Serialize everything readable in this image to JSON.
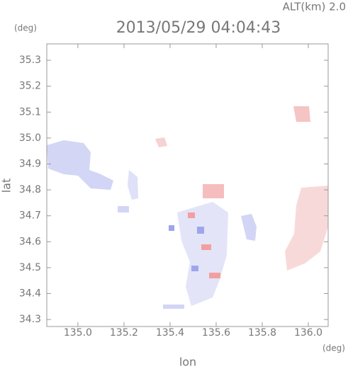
{
  "chart_data": {
    "type": "map",
    "title": "2013/05/29 04:04:43",
    "subtitle": "ALT(km) 2.0",
    "xlabel": "lon",
    "ylabel": "lat",
    "xunit": "(deg)",
    "yunit": "(deg)",
    "xlim": [
      134.865,
      136.086
    ],
    "ylim": [
      34.273,
      35.363
    ],
    "xticks": [
      {
        "value": 135,
        "label": "135.0"
      },
      135.2,
      135.4,
      135.6,
      135.8,
      {
        "value": 136,
        "label": "136.0"
      }
    ],
    "yticks": [
      34.3,
      34.4,
      34.5,
      34.6,
      34.7,
      34.8,
      34.9,
      {
        "value": 35,
        "label": "35.0"
      },
      35.1,
      35.2,
      35.3
    ]
  }
}
